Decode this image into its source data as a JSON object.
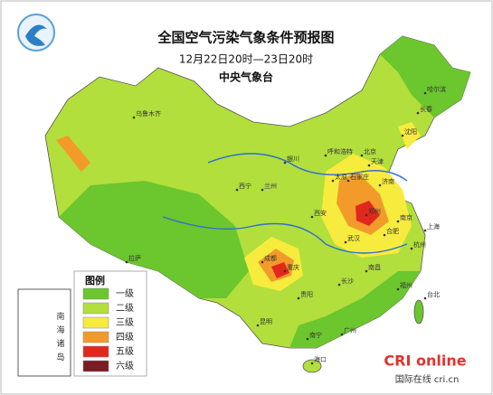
{
  "header": {
    "title": "全国空气污染气象条件预报图",
    "period": "12月22日20时—23日20时",
    "issuer": "中央气象台"
  },
  "legend": {
    "title": "图例",
    "items": [
      {
        "label": "一级",
        "color": "#6cc62e"
      },
      {
        "label": "二级",
        "color": "#b2df3c"
      },
      {
        "label": "三级",
        "color": "#f7ec3e"
      },
      {
        "label": "四级",
        "color": "#f29b2b"
      },
      {
        "label": "五级",
        "color": "#e2281c"
      },
      {
        "label": "六级",
        "color": "#7b1b22"
      }
    ]
  },
  "inset": {
    "label": "南海诸岛"
  },
  "cities": [
    "乌鲁木齐",
    "哈尔滨",
    "长春",
    "沈阳",
    "北京",
    "天津",
    "石家庄",
    "太原",
    "济南",
    "呼和浩特",
    "银川",
    "兰州",
    "西宁",
    "郑州",
    "西安",
    "成都",
    "重庆",
    "武汉",
    "合肥",
    "南京",
    "上海",
    "杭州",
    "长沙",
    "贵阳",
    "昆明",
    "南宁",
    "广州",
    "福州",
    "南昌",
    "拉萨",
    "海口",
    "台北"
  ],
  "watermark": {
    "brand": "CRI online",
    "site": "国际在线 cri.cn"
  }
}
